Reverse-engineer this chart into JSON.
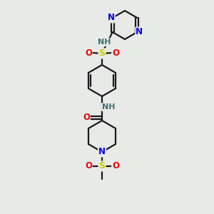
{
  "background_color": "#e8eae8",
  "bond_color": "#1a1a1a",
  "atom_colors": {
    "N": "#0000ee",
    "O": "#ee0000",
    "S": "#cccc00",
    "H": "#407070",
    "C": "#1a1a1a"
  },
  "figsize": [
    3.0,
    3.0
  ],
  "dpi": 100
}
